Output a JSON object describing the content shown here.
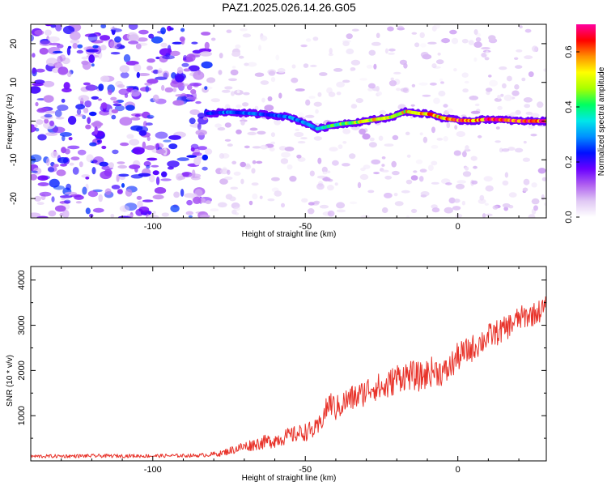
{
  "title": "PAZ1.2025.026.14.26.G05",
  "colors": {
    "line": "#e8332a",
    "frame": "#000000",
    "ridge_colorbar": [
      "#ffffff",
      "#e0c8f4",
      "#b060f0",
      "#6a00ff",
      "#0010ff",
      "#0090ff",
      "#00e8e8",
      "#00ff60",
      "#a8ff00",
      "#ffff00",
      "#ff9000",
      "#ff0000",
      "#ff00a0"
    ]
  },
  "chart_data": [
    {
      "type": "heatmap",
      "title": "PAZ1.2025.026.14.26.G05",
      "xlabel": "Height of straight line (km)",
      "ylabel": "Frequency (Hz)",
      "xlim": [
        -140,
        29
      ],
      "ylim": [
        -25,
        25
      ],
      "xticks": [
        -100,
        -50,
        0
      ],
      "xtick_labels": [
        "-100",
        "-50",
        "0"
      ],
      "yticks": [
        -20,
        -10,
        0,
        10,
        20
      ],
      "ytick_labels": [
        "-20",
        "-10",
        "0",
        "10",
        "20"
      ],
      "colorbar": {
        "label": "Normalized spectral amplitude",
        "range": [
          0,
          0.7
        ],
        "ticks": [
          0,
          0.2,
          0.4,
          0.6
        ],
        "tick_labels": [
          "0.0",
          "0.2",
          "0.4",
          "0.6"
        ]
      },
      "ridge": {
        "description": "dominant frequency track",
        "start_height_km": -82,
        "x": [
          -82,
          -75,
          -68,
          -60,
          -55,
          -50,
          -46,
          -42,
          -38,
          -33,
          -28,
          -22,
          -17,
          -13,
          -9,
          -5,
          0,
          5,
          10,
          15,
          20,
          29
        ],
        "freq_hz": [
          2.0,
          2.3,
          2.0,
          1.5,
          1.0,
          -0.5,
          -2.0,
          -1.3,
          -0.7,
          -0.3,
          0.3,
          1.0,
          2.5,
          2.0,
          1.8,
          0.8,
          0.2,
          0.1,
          0.5,
          0.3,
          0.0,
          0.0
        ],
        "amplitude": [
          0.25,
          0.3,
          0.28,
          0.25,
          0.3,
          0.3,
          0.35,
          0.4,
          0.45,
          0.5,
          0.55,
          0.5,
          0.55,
          0.55,
          0.6,
          0.62,
          0.65,
          0.66,
          0.68,
          0.68,
          0.69,
          0.7
        ]
      },
      "background": {
        "noise_level_below_ridge_start": 0.12,
        "noise_level_above_ridge_start": 0.04
      }
    },
    {
      "type": "line",
      "xlabel": "Height of straight line (km)",
      "ylabel": "SNR (10 * v/v)",
      "xlim": [
        -140,
        29
      ],
      "ylim": [
        0,
        4300
      ],
      "xticks": [
        -100,
        -50,
        0
      ],
      "xtick_labels": [
        "-100",
        "-50",
        "0"
      ],
      "yticks": [
        1000,
        2000,
        3000,
        4000
      ],
      "ytick_labels": [
        "1000",
        "2000",
        "3000",
        "4000"
      ],
      "series": [
        {
          "name": "SNR",
          "x": [
            -140,
            -120,
            -100,
            -85,
            -78,
            -72,
            -66,
            -60,
            -55,
            -50,
            -46,
            -44,
            -42,
            -40,
            -36,
            -32,
            -28,
            -24,
            -20,
            -16,
            -12,
            -8,
            -4,
            0,
            5,
            10,
            15,
            20,
            25,
            29
          ],
          "values": [
            100,
            110,
            110,
            120,
            160,
            280,
            380,
            460,
            560,
            640,
            700,
            1000,
            1300,
            1150,
            1350,
            1450,
            1650,
            1600,
            1850,
            1900,
            1850,
            2000,
            1950,
            2300,
            2500,
            2750,
            2900,
            3150,
            3250,
            3400
          ],
          "noise_amplitude": [
            40,
            40,
            40,
            40,
            60,
            110,
            140,
            170,
            180,
            200,
            220,
            250,
            280,
            280,
            300,
            300,
            310,
            320,
            330,
            330,
            330,
            330,
            320,
            320,
            300,
            290,
            280,
            270,
            260,
            250
          ]
        }
      ]
    }
  ]
}
